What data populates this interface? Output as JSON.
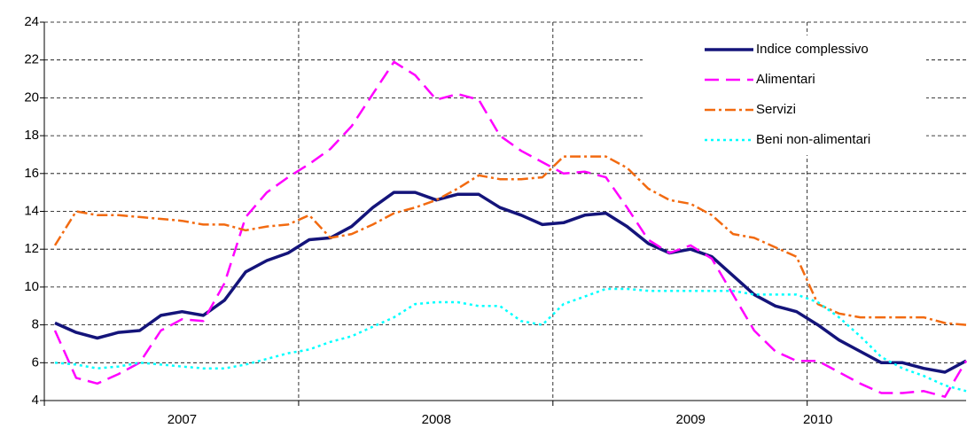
{
  "chart_data": {
    "type": "line",
    "categories": [
      null,
      null,
      null,
      null,
      null,
      null,
      "2007",
      null,
      null,
      null,
      null,
      null,
      null,
      null,
      null,
      null,
      null,
      null,
      "2008",
      null,
      null,
      null,
      null,
      null,
      null,
      null,
      null,
      null,
      null,
      null,
      "2009",
      null,
      null,
      null,
      null,
      null,
      "2010",
      null,
      null,
      null,
      null,
      null,
      null,
      null
    ],
    "series": [
      {
        "name": "Indice complessivo",
        "color": "#14147a",
        "dash": "solid",
        "values": [
          8.1,
          7.6,
          7.3,
          7.6,
          7.7,
          8.5,
          8.7,
          8.5,
          9.3,
          10.8,
          11.4,
          11.8,
          12.5,
          12.6,
          13.2,
          14.2,
          15.0,
          15.0,
          14.6,
          14.9,
          14.9,
          14.2,
          13.8,
          13.3,
          13.4,
          13.8,
          13.9,
          13.2,
          12.3,
          11.8,
          12.0,
          11.6,
          10.6,
          9.6,
          9.0,
          8.7,
          8.0,
          7.2,
          6.6,
          6.0,
          6.0,
          5.7,
          5.5,
          6.1
        ]
      },
      {
        "name": "Alimentari",
        "color": "#ff00ff",
        "dash": "dashed",
        "values": [
          7.7,
          5.2,
          4.9,
          5.4,
          6.0,
          7.7,
          8.3,
          8.2,
          10.2,
          13.7,
          15.0,
          15.8,
          16.5,
          17.3,
          18.5,
          20.2,
          21.9,
          21.2,
          19.9,
          20.2,
          19.9,
          18.0,
          17.2,
          16.6,
          16.0,
          16.1,
          15.8,
          14.2,
          12.5,
          11.8,
          12.2,
          11.5,
          9.6,
          7.7,
          6.6,
          6.1,
          6.1,
          5.5,
          4.9,
          4.4,
          4.4,
          4.5,
          4.2,
          6.1
        ]
      },
      {
        "name": "Servizi",
        "color": "#f26a10",
        "dash": "dashdot",
        "values": [
          12.2,
          14.0,
          13.8,
          13.8,
          13.7,
          13.6,
          13.5,
          13.3,
          13.3,
          13.0,
          13.2,
          13.3,
          13.8,
          12.6,
          12.8,
          13.3,
          13.9,
          14.2,
          14.6,
          15.2,
          15.9,
          15.7,
          15.7,
          15.8,
          16.9,
          16.9,
          16.9,
          16.3,
          15.2,
          14.6,
          14.4,
          13.8,
          12.8,
          12.6,
          12.1,
          11.6,
          9.1,
          8.6,
          8.4,
          8.4,
          8.4,
          8.4,
          8.1,
          8.0
        ]
      },
      {
        "name": "Beni non-alimentari",
        "color": "#00ffff",
        "dash": "dotted",
        "values": [
          6.0,
          5.9,
          5.7,
          5.8,
          6.0,
          5.9,
          5.8,
          5.7,
          5.7,
          5.9,
          6.2,
          6.5,
          6.7,
          7.1,
          7.4,
          7.9,
          8.4,
          9.1,
          9.2,
          9.2,
          9.0,
          9.0,
          8.2,
          8.0,
          9.1,
          9.5,
          9.9,
          9.9,
          9.8,
          9.8,
          9.8,
          9.8,
          9.8,
          9.6,
          9.6,
          9.6,
          9.2,
          8.4,
          7.4,
          6.3,
          5.7,
          5.3,
          4.8,
          4.5
        ]
      }
    ],
    "ylim": [
      4,
      24
    ],
    "yticks": [
      4,
      6,
      8,
      10,
      12,
      14,
      16,
      18,
      20,
      22,
      24
    ],
    "grid": true,
    "legend": "top-right"
  }
}
